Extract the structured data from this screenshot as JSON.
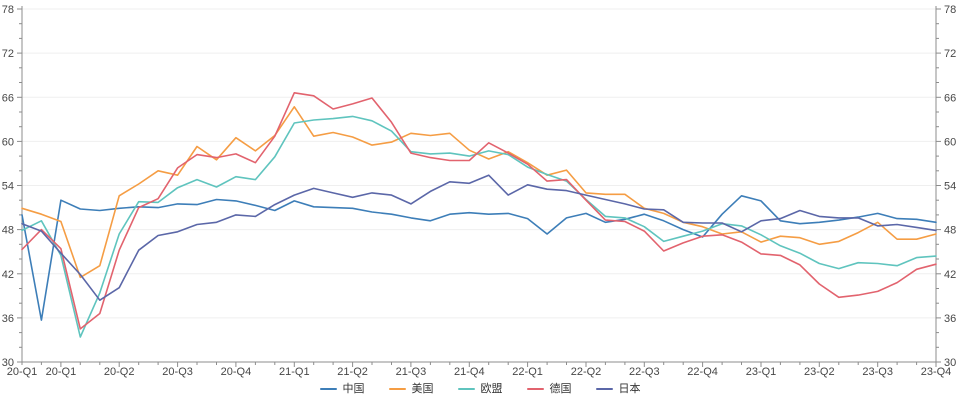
{
  "chart_data": {
    "type": "line",
    "title": "",
    "x_unit": "month",
    "x_start": "2020-01",
    "x_end": "2023-12",
    "points_per_series": 48,
    "x_tick_labels": [
      "20-Q1",
      "20-Q1",
      "20-Q2",
      "20-Q3",
      "20-Q4",
      "21-Q1",
      "21-Q2",
      "21-Q3",
      "21-Q4",
      "22-Q1",
      "22-Q2",
      "22-Q3",
      "22-Q4",
      "23-Q1",
      "23-Q2",
      "23-Q3",
      "23-Q4"
    ],
    "y_axis": {
      "min": 30,
      "max": 78,
      "major_step": 6,
      "minor_step": 2,
      "tick_labels": [
        "30",
        "36",
        "42",
        "48",
        "54",
        "60",
        "66",
        "72",
        "78"
      ],
      "mirrored_right_axis": true
    },
    "grid": "horizontal-major-only",
    "legend_position": "bottom-center",
    "colors": {
      "axis": "#8c8c8c",
      "grid": "#efefef",
      "tick_text": "#474747",
      "legend_text": "#333333"
    },
    "series": [
      {
        "id": "china",
        "name": "中国",
        "color": "#3D7EB8",
        "values": [
          50.0,
          35.7,
          52.0,
          50.8,
          50.6,
          50.9,
          51.1,
          51.0,
          51.5,
          51.4,
          52.1,
          51.9,
          51.3,
          50.6,
          51.9,
          51.1,
          51.0,
          50.9,
          50.4,
          50.1,
          49.6,
          49.2,
          50.1,
          50.3,
          50.1,
          50.2,
          49.5,
          47.4,
          49.6,
          50.2,
          49.0,
          49.4,
          50.1,
          49.2,
          48.0,
          47.0,
          50.1,
          52.6,
          51.9,
          49.2,
          48.8,
          49.0,
          49.3,
          49.7,
          50.2,
          49.5,
          49.4,
          49.0
        ]
      },
      {
        "id": "us",
        "name": "美国",
        "color": "#F59D44",
        "values": [
          50.9,
          50.1,
          49.1,
          41.5,
          43.1,
          52.6,
          54.2,
          56.0,
          55.4,
          59.3,
          57.5,
          60.5,
          58.7,
          60.8,
          64.7,
          60.7,
          61.2,
          60.6,
          59.5,
          59.9,
          61.1,
          60.8,
          61.1,
          58.8,
          57.6,
          58.6,
          57.1,
          55.4,
          56.1,
          53.0,
          52.8,
          52.8,
          50.9,
          50.2,
          49.0,
          48.4,
          47.4,
          47.7,
          46.3,
          47.1,
          46.9,
          46.0,
          46.4,
          47.6,
          49.0,
          46.7,
          46.7,
          47.4
        ]
      },
      {
        "id": "eu",
        "name": "欧盟",
        "color": "#5FC4BE",
        "values": [
          47.9,
          49.2,
          44.5,
          33.4,
          39.4,
          47.4,
          51.8,
          51.7,
          53.7,
          54.8,
          53.8,
          55.2,
          54.8,
          57.9,
          62.5,
          62.9,
          63.1,
          63.4,
          62.8,
          61.4,
          58.6,
          58.3,
          58.4,
          58.0,
          58.7,
          58.2,
          56.5,
          55.5,
          54.6,
          52.1,
          49.8,
          49.6,
          48.4,
          46.4,
          47.1,
          47.8,
          48.8,
          48.5,
          47.3,
          45.8,
          44.8,
          43.4,
          42.7,
          43.5,
          43.4,
          43.1,
          44.2,
          44.4
        ]
      },
      {
        "id": "germany",
        "name": "德国",
        "color": "#E2636E",
        "values": [
          45.3,
          48.0,
          45.4,
          34.5,
          36.6,
          45.2,
          51.0,
          52.2,
          56.4,
          58.2,
          57.8,
          58.3,
          57.1,
          60.7,
          66.6,
          66.2,
          64.4,
          65.1,
          65.9,
          62.6,
          58.4,
          57.8,
          57.4,
          57.4,
          59.8,
          58.4,
          56.9,
          54.6,
          54.8,
          52.0,
          49.3,
          49.1,
          47.8,
          45.1,
          46.2,
          47.1,
          47.3,
          46.3,
          44.7,
          44.5,
          43.2,
          40.6,
          38.8,
          39.1,
          39.6,
          40.8,
          42.6,
          43.3
        ]
      },
      {
        "id": "japan",
        "name": "日本",
        "color": "#5B67A8",
        "values": [
          48.8,
          47.8,
          44.8,
          41.9,
          38.4,
          40.1,
          45.2,
          47.2,
          47.7,
          48.7,
          49.0,
          50.0,
          49.8,
          51.4,
          52.7,
          53.6,
          53.0,
          52.4,
          53.0,
          52.7,
          51.5,
          53.2,
          54.5,
          54.3,
          55.4,
          52.7,
          54.1,
          53.5,
          53.3,
          52.7,
          52.1,
          51.5,
          50.8,
          50.7,
          49.0,
          48.9,
          48.9,
          47.7,
          49.2,
          49.5,
          50.6,
          49.8,
          49.6,
          49.6,
          48.5,
          48.7,
          48.3,
          47.9
        ]
      }
    ]
  }
}
